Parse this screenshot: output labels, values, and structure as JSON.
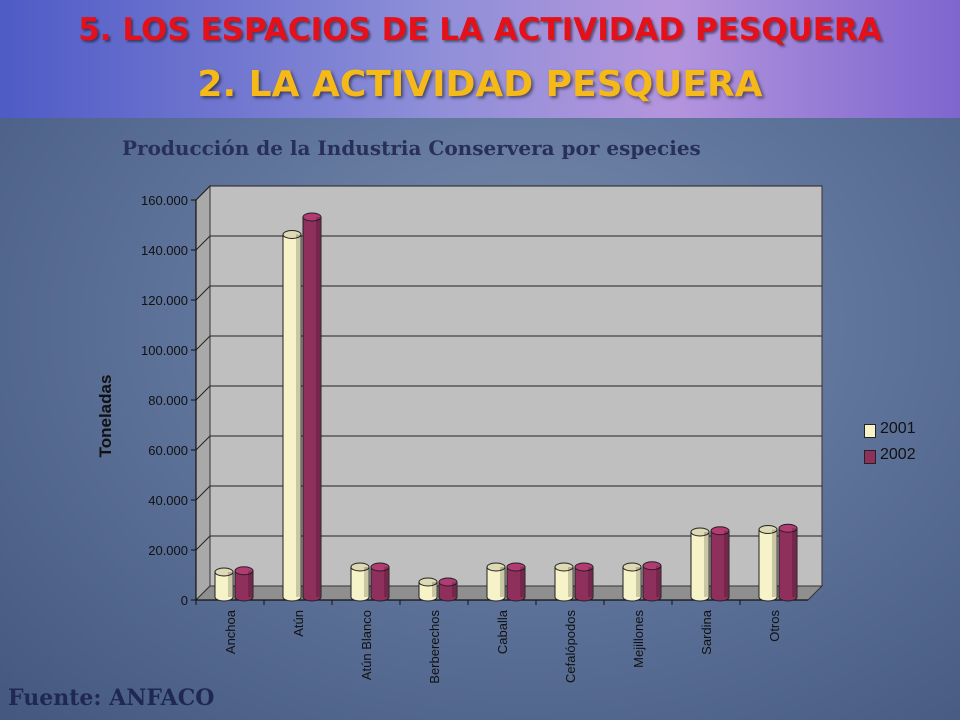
{
  "header": {
    "line1": "5. LOS ESPACIOS DE LA ACTIVIDAD PESQUERA",
    "line2": "2. LA ACTIVIDAD PESQUERA"
  },
  "source": "Fuente: ANFACO",
  "colors": {
    "series_2001": "#f7f3c8",
    "series_2002": "#8e2f5c",
    "plot_bg": "#bfbfbf",
    "title_red": "#e4101a",
    "title_gold": "#f5b918"
  },
  "chart_data": {
    "type": "bar",
    "title": "Producción de la Industria Conservera por especies",
    "xlabel": "",
    "ylabel": "Toneladas",
    "ylim": [
      0,
      160000
    ],
    "yticks": [
      "0",
      "20.000",
      "40.000",
      "60.000",
      "80.000",
      "100.000",
      "120.000",
      "140.000",
      "160.000"
    ],
    "grid": true,
    "legend_position": "right",
    "categories": [
      "Anchoa",
      "Atún",
      "Atún Blanco",
      "Berberechos",
      "Caballa",
      "Cefalópodos",
      "Mejillones",
      "Sardina",
      "Otros"
    ],
    "series": [
      {
        "name": "2001",
        "values": [
          10000,
          145000,
          12000,
          6000,
          12000,
          12000,
          12000,
          26000,
          27000
        ]
      },
      {
        "name": "2002",
        "values": [
          10500,
          152000,
          12000,
          6000,
          12000,
          12000,
          12500,
          26500,
          27500
        ]
      }
    ]
  }
}
